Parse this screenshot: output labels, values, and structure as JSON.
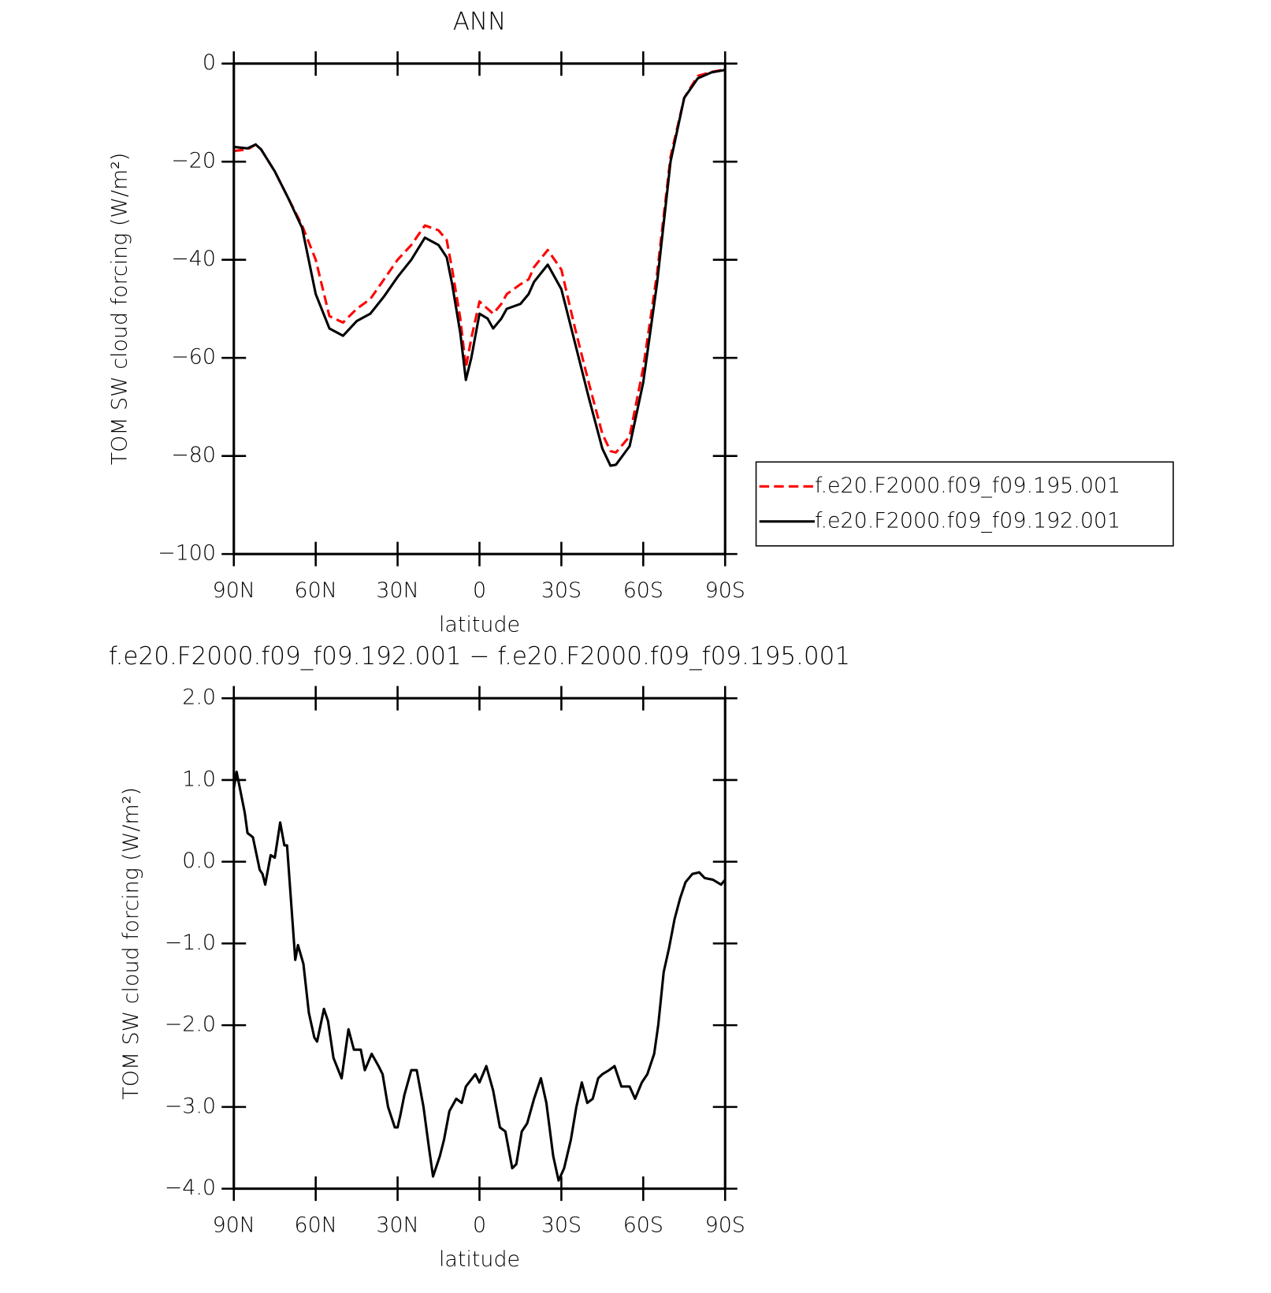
{
  "chart_data": [
    {
      "type": "line",
      "title": "ANN",
      "xlabel": "latitude",
      "ylabel": "TOM SW cloud forcing (W/m²)",
      "xlim": [
        90,
        -90
      ],
      "xticks": [
        {
          "value": 90,
          "label": "90N"
        },
        {
          "value": 60,
          "label": "60N"
        },
        {
          "value": 30,
          "label": "30N"
        },
        0,
        {
          "value": -30,
          "label": "30S"
        },
        {
          "value": -60,
          "label": "60S"
        },
        {
          "value": -90,
          "label": "90S"
        }
      ],
      "ylim": [
        -100,
        0
      ],
      "yticks": [
        0,
        {
          "value": -20,
          "label": "−20"
        },
        {
          "value": -40,
          "label": "−40"
        },
        {
          "value": -60,
          "label": "−60"
        },
        {
          "value": -80,
          "label": "−80"
        },
        {
          "value": -100,
          "label": "−100"
        }
      ],
      "legend": "right",
      "x": [
        90,
        85,
        82,
        80,
        75,
        70,
        65,
        60,
        55,
        50,
        45,
        40,
        35,
        30,
        25,
        20,
        15,
        12,
        10,
        7,
        5,
        3,
        0,
        -3,
        -5,
        -8,
        -10,
        -15,
        -18,
        -20,
        -25,
        -30,
        -35,
        -40,
        -45,
        -48,
        -50,
        -55,
        -60,
        -65,
        -70,
        -75,
        -80,
        -85,
        -90
      ],
      "series": [
        {
          "name": "f.e20.F2000.f09_f09.195.001",
          "color": "#ff0000",
          "dashed": true,
          "values": [
            -17.8,
            -17.5,
            -16.5,
            -17.5,
            -22,
            -27.5,
            -33,
            -40,
            -51.5,
            -52.8,
            -50,
            -48,
            -44,
            -40,
            -37,
            -33,
            -34,
            -36,
            -42,
            -52,
            -62,
            -56,
            -48.5,
            -50,
            -51,
            -49,
            -47,
            -45,
            -44,
            -41.5,
            -38,
            -42,
            -54,
            -65,
            -75.5,
            -79,
            -79.3,
            -76,
            -62,
            -43,
            -19,
            -7,
            -2.5,
            -1.7,
            -1.2
          ]
        },
        {
          "name": "f.e20.F2000.f09_f09.192.001",
          "color": "#000000",
          "dashed": false,
          "values": [
            -17,
            -17.3,
            -16.5,
            -17.5,
            -22,
            -27.5,
            -33.5,
            -47,
            -54,
            -55.5,
            -52.5,
            -51,
            -47.5,
            -43.5,
            -40,
            -35.5,
            -37,
            -39.5,
            -45,
            -55,
            -64.5,
            -60,
            -51,
            -52,
            -54,
            -52,
            -50,
            -49,
            -47,
            -44.5,
            -41,
            -46,
            -57,
            -68,
            -78.5,
            -82,
            -81.8,
            -78,
            -65,
            -45,
            -20,
            -7,
            -3,
            -1.8,
            -1.3
          ]
        }
      ]
    },
    {
      "type": "line",
      "title": "f.e20.F2000.f09_f09.192.001 − f.e20.F2000.f09_f09.195.001",
      "xlabel": "latitude",
      "ylabel": "TOM SW cloud forcing (W/m²)",
      "xlim": [
        90,
        -90
      ],
      "xticks": [
        {
          "value": 90,
          "label": "90N"
        },
        {
          "value": 60,
          "label": "60N"
        },
        {
          "value": 30,
          "label": "30N"
        },
        0,
        {
          "value": -30,
          "label": "30S"
        },
        {
          "value": -60,
          "label": "60S"
        },
        {
          "value": -90,
          "label": "90S"
        }
      ],
      "ylim": [
        -4,
        2
      ],
      "yticks": [
        {
          "value": 2,
          "label": "2.0"
        },
        {
          "value": 1,
          "label": "1.0"
        },
        {
          "value": 0,
          "label": "0.0"
        },
        {
          "value": -1,
          "label": "−1.0"
        },
        {
          "value": -2,
          "label": "−2.0"
        },
        {
          "value": -3,
          "label": "−3.0"
        },
        {
          "value": -4,
          "label": "−4.0"
        }
      ],
      "x": [
        90,
        89,
        86,
        85,
        83,
        80.5,
        79.5,
        78.5,
        76.5,
        75,
        73,
        71.5,
        70.5,
        67.5,
        66.5,
        64.5,
        62.5,
        60.5,
        59.5,
        57,
        55.5,
        53.5,
        50.5,
        48,
        46,
        43.5,
        42,
        39.5,
        37,
        35.5,
        33.5,
        31,
        30,
        29,
        27.5,
        25,
        23,
        20.5,
        18.5,
        17,
        14.5,
        13,
        11,
        8.5,
        6.5,
        5,
        1.5,
        0,
        -2.5,
        -5,
        -7.5,
        -9.5,
        -12,
        -13.5,
        -15.5,
        -17.5,
        -20,
        -22.5,
        -24.5,
        -27,
        -29,
        -31,
        -33.5,
        -35.5,
        -37.5,
        -39.5,
        -41.5,
        -43.5,
        -45,
        -47.5,
        -49.5,
        -52,
        -55,
        -57,
        -59.5,
        -61.5,
        -64,
        -65.5,
        -67.5,
        -69.5,
        -71.5,
        -73.5,
        -75.5,
        -78,
        -80.5,
        -82.5,
        -85.5,
        -88.5,
        -90
      ],
      "series": [
        {
          "color": "#000000",
          "values": [
            0.9,
            1.1,
            0.6,
            0.35,
            0.3,
            -0.1,
            -0.15,
            -0.28,
            0.08,
            0.05,
            0.48,
            0.2,
            0.2,
            -1.2,
            -1.02,
            -1.25,
            -1.85,
            -2.15,
            -2.2,
            -1.8,
            -1.95,
            -2.4,
            -2.65,
            -2.05,
            -2.3,
            -2.3,
            -2.55,
            -2.35,
            -2.5,
            -2.6,
            -3.0,
            -3.25,
            -3.25,
            -3.1,
            -2.85,
            -2.55,
            -2.55,
            -3.0,
            -3.5,
            -3.85,
            -3.6,
            -3.4,
            -3.05,
            -2.9,
            -2.95,
            -2.75,
            -2.6,
            -2.7,
            -2.5,
            -2.8,
            -3.25,
            -3.3,
            -3.75,
            -3.7,
            -3.3,
            -3.2,
            -2.9,
            -2.65,
            -2.95,
            -3.6,
            -3.9,
            -3.75,
            -3.4,
            -3.0,
            -2.7,
            -2.95,
            -2.9,
            -2.65,
            -2.6,
            -2.55,
            -2.5,
            -2.75,
            -2.75,
            -2.9,
            -2.7,
            -2.6,
            -2.35,
            -2.0,
            -1.35,
            -1.05,
            -0.7,
            -0.45,
            -0.25,
            -0.15,
            -0.13,
            -0.2,
            -0.22,
            -0.28,
            -0.22
          ]
        }
      ]
    }
  ]
}
